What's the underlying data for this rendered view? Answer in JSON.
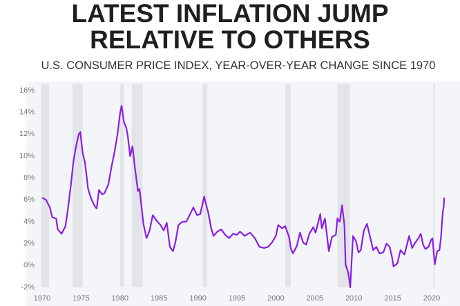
{
  "chart_data": {
    "type": "line",
    "title_line1": "LATEST INFLATION JUMP",
    "title_line2": "RELATIVE TO OTHERS",
    "subtitle": "U.S. CONSUMER PRICE INDEX, YEAR-OVER-YEAR CHANGE SINCE 1970",
    "x": [
      1970.0,
      1970.5,
      1971.0,
      1971.3,
      1971.8,
      1972.0,
      1972.5,
      1973.0,
      1973.3,
      1973.7,
      1974.0,
      1974.3,
      1974.7,
      1974.9,
      1975.2,
      1975.5,
      1975.9,
      1976.3,
      1976.7,
      1977.0,
      1977.3,
      1977.7,
      1978.0,
      1978.5,
      1978.9,
      1979.3,
      1979.7,
      1980.0,
      1980.2,
      1980.5,
      1980.8,
      1981.0,
      1981.3,
      1981.6,
      1981.9,
      1982.3,
      1982.5,
      1982.8,
      1983.0,
      1983.4,
      1983.8,
      1984.2,
      1984.4,
      1984.8,
      1985.2,
      1985.6,
      1986.0,
      1986.4,
      1986.8,
      1987.1,
      1987.5,
      1988.0,
      1988.5,
      1989.0,
      1989.4,
      1989.9,
      1990.3,
      1990.8,
      1991.0,
      1991.3,
      1991.7,
      1992.0,
      1992.5,
      1993.0,
      1993.5,
      1994.0,
      1994.5,
      1995.0,
      1995.4,
      1996.0,
      1996.7,
      1997.3,
      1997.9,
      1998.5,
      1999.0,
      1999.5,
      2000.0,
      2000.3,
      2000.8,
      2001.2,
      2001.7,
      2001.9,
      2002.2,
      2002.7,
      2003.1,
      2003.5,
      2003.9,
      2004.3,
      2004.8,
      2005.1,
      2005.7,
      2005.9,
      2006.3,
      2006.8,
      2007.2,
      2007.7,
      2007.9,
      2008.2,
      2008.5,
      2008.8,
      2008.95,
      2009.3,
      2009.55,
      2009.9,
      2010.3,
      2010.6,
      2010.9,
      2011.3,
      2011.7,
      2012.0,
      2012.5,
      2012.9,
      2013.3,
      2013.8,
      2014.2,
      2014.6,
      2014.9,
      2015.1,
      2015.6,
      2016.0,
      2016.5,
      2016.9,
      2017.1,
      2017.5,
      2017.9,
      2018.3,
      2018.6,
      2018.9,
      2019.2,
      2019.6,
      2019.9,
      2020.1,
      2020.4,
      2020.7,
      2021.0,
      2021.2,
      2021.35,
      2021.45,
      2021.55,
      2021.6
    ],
    "series": [
      {
        "name": "CPI YoY",
        "color": "#8a1ee6",
        "values": [
          6.2,
          6.0,
          5.3,
          4.4,
          4.3,
          3.3,
          2.9,
          3.6,
          5.1,
          7.4,
          9.4,
          10.7,
          12.0,
          12.2,
          10.3,
          9.4,
          7.0,
          6.1,
          5.5,
          5.2,
          6.9,
          6.5,
          6.6,
          7.4,
          9.0,
          10.4,
          12.1,
          13.9,
          14.6,
          13.1,
          12.6,
          11.8,
          10.0,
          10.9,
          9.0,
          6.8,
          7.0,
          5.1,
          3.8,
          2.5,
          3.2,
          4.6,
          4.4,
          4.0,
          3.7,
          3.2,
          3.9,
          1.7,
          1.3,
          2.1,
          3.7,
          4.0,
          4.0,
          4.7,
          5.3,
          4.6,
          4.7,
          6.3,
          5.7,
          4.9,
          3.4,
          2.7,
          3.1,
          3.3,
          2.8,
          2.5,
          2.9,
          2.8,
          3.1,
          2.7,
          3.0,
          2.5,
          1.7,
          1.6,
          1.7,
          2.1,
          2.7,
          3.7,
          3.4,
          3.6,
          2.6,
          1.6,
          1.1,
          1.8,
          3.0,
          2.1,
          1.9,
          2.9,
          3.5,
          3.0,
          4.7,
          3.4,
          4.3,
          1.3,
          2.6,
          2.8,
          4.3,
          4.0,
          5.5,
          3.7,
          0.1,
          -0.7,
          -2.0,
          2.7,
          2.2,
          1.2,
          1.4,
          3.2,
          3.8,
          2.9,
          1.4,
          1.7,
          1.1,
          1.2,
          2.0,
          1.7,
          0.8,
          -0.1,
          0.2,
          1.4,
          1.0,
          2.1,
          2.7,
          1.6,
          2.1,
          2.5,
          2.9,
          1.9,
          1.5,
          1.7,
          2.3,
          2.5,
          0.1,
          1.3,
          1.4,
          2.6,
          4.2,
          5.0,
          5.4,
          6.2
        ]
      }
    ],
    "recessions": [
      [
        1969.9,
        1970.9
      ],
      [
        1973.9,
        1975.2
      ],
      [
        1980.0,
        1980.5
      ],
      [
        1981.5,
        1982.9
      ],
      [
        1990.6,
        1991.2
      ],
      [
        2001.2,
        2001.9
      ],
      [
        2007.9,
        2009.5
      ],
      [
        2020.2,
        2020.4
      ]
    ],
    "recession_color": "#e2e4e7",
    "xlim": [
      1969.7,
      2021.8
    ],
    "xticks": [
      1970,
      1975,
      1980,
      1985,
      1990,
      1995,
      2000,
      2005,
      2010,
      2015,
      2020
    ],
    "ylim": [
      -2,
      16
    ],
    "yticks": [
      {
        "value": -2,
        "label": "-2%"
      },
      {
        "value": 0,
        "label": "0%"
      },
      {
        "value": 2,
        "label": "2%"
      },
      {
        "value": 4,
        "label": "4%"
      },
      {
        "value": 6,
        "label": "6%"
      },
      {
        "value": 8,
        "label": "8%"
      },
      {
        "value": 10,
        "label": "10%"
      },
      {
        "value": 12,
        "label": "12%"
      },
      {
        "value": 14,
        "label": "14%"
      },
      {
        "value": 16,
        "label": "16%"
      }
    ]
  }
}
